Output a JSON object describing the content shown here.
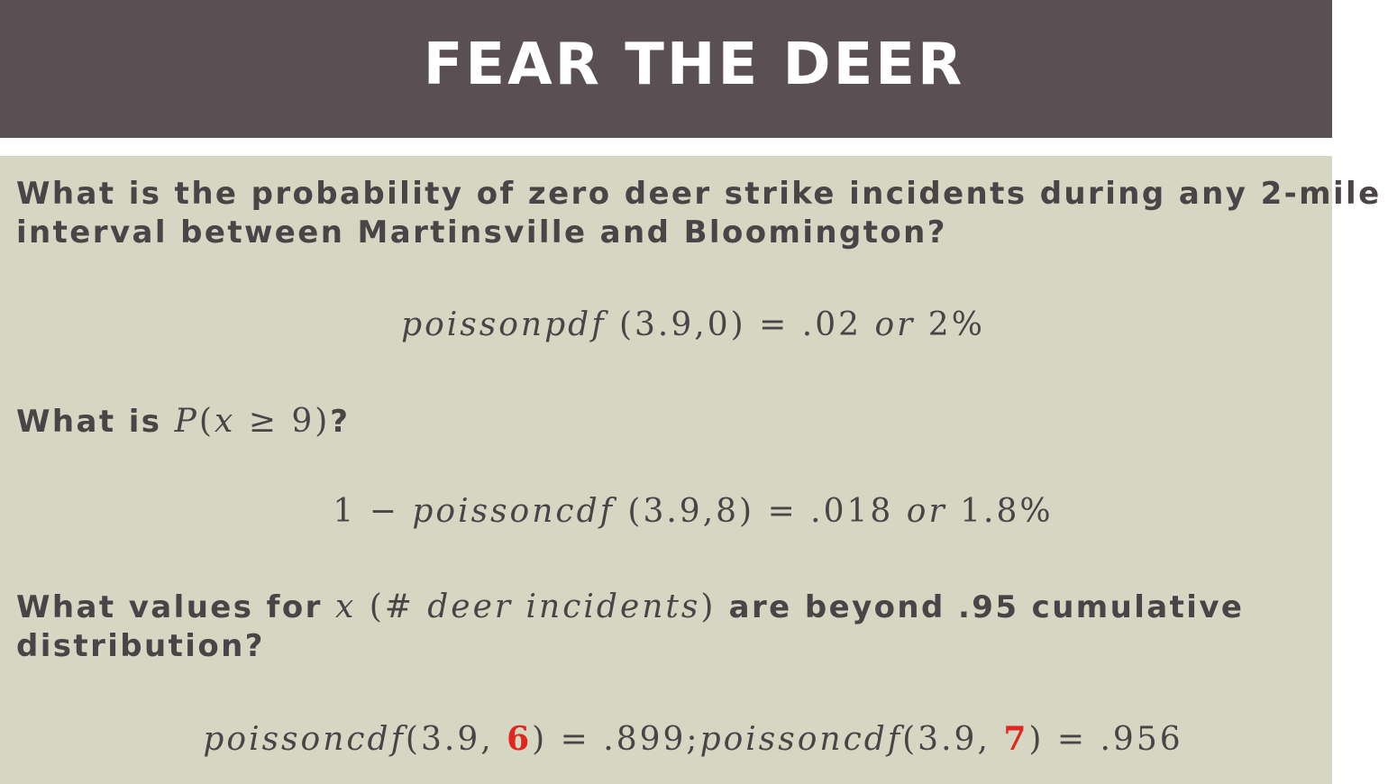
{
  "slide": {
    "title": "FEAR THE DEER",
    "q1": {
      "line1": "What is the probability of zero deer strike incidents during any 2-mile",
      "line2": "interval between Martinsville and Bloomington?"
    },
    "eq1": {
      "fn": "poissonpdf",
      "args": "(3.9,0)",
      "result": "= .02",
      "or": "or",
      "pct": "2%"
    },
    "q2": {
      "prefix": "What is ",
      "math_p": "P",
      "math_open": "(",
      "math_x": "x",
      "math_rest": " ≥ 9)",
      "suffix": "?"
    },
    "eq2": {
      "lead": "1 − ",
      "fn": "poissoncdf",
      "args": "(3.9,8)",
      "result": "= .018",
      "or": "or",
      "pct": "1.8%"
    },
    "q3": {
      "prefix": "What values for ",
      "math_x": "x",
      "math_open": " (#",
      "math_phrase": "deer incidents",
      "math_close": ")",
      "suffix": " are beyond .95 cumulative",
      "line2": "distribution?"
    },
    "eq3": {
      "fn_a": "poissoncdf",
      "open_a": "(3.9, ",
      "val_a": "6",
      "close_a": ") = .899;",
      "fn_b": "poissoncdf",
      "open_b": "(3.9, ",
      "val_b": "7",
      "close_b": ") = .956",
      "highlight_color": "#e0271f"
    },
    "colors": {
      "title_bar": "#5a5054",
      "content_bg": "#d5d7c3",
      "text": "#4a4446"
    }
  }
}
